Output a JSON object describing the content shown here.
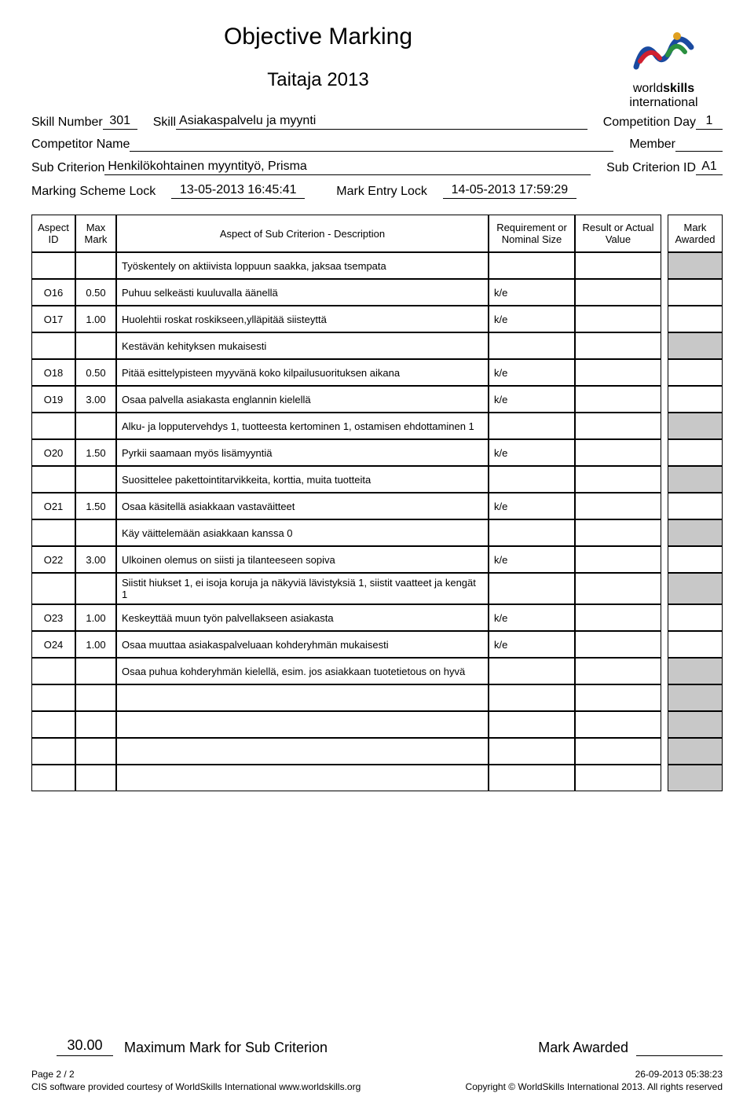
{
  "titles": {
    "main": "Objective Marking",
    "sub": "Taitaja 2013"
  },
  "logo": {
    "line1": "world",
    "line1b": "skills",
    "line2": "international"
  },
  "meta": {
    "skill_number_label": "Skill Number",
    "skill_number": "301",
    "skill_label": "Skill",
    "skill": "Asiakaspalvelu ja myynti",
    "comp_day_label": "Competition Day",
    "comp_day": "1",
    "competitor_label": "Competitor Name",
    "member_label": "Member",
    "sub_crit_label": "Sub Criterion",
    "sub_crit": "Henkilökohtainen myyntityö, Prisma",
    "sub_crit_id_label": "Sub Criterion ID",
    "sub_crit_id": "A1",
    "lock1_label": "Marking Scheme Lock",
    "lock1": "13-05-2013  16:45:41",
    "lock2_label": "Mark Entry Lock",
    "lock2": "14-05-2013  17:59:29"
  },
  "headers": {
    "id": "Aspect ID",
    "max": "Max Mark",
    "desc": "Aspect of Sub Criterion - Description",
    "req": "Requirement or Nominal Size",
    "res": "Result or Actual Value",
    "awd": "Mark Awarded"
  },
  "rows": [
    {
      "type": "note",
      "desc": "Työskentely on aktiivista loppuun saakka, jaksaa tsempata"
    },
    {
      "type": "item",
      "id": "O16",
      "max": "0.50",
      "desc": "Puhuu selkeästi kuuluvalla äänellä",
      "req": "k/e"
    },
    {
      "type": "item",
      "id": "O17",
      "max": "1.00",
      "desc": "Huolehtii roskat roskikseen,ylläpitää siisteyttä",
      "req": "k/e"
    },
    {
      "type": "note",
      "desc": "Kestävän kehityksen mukaisesti"
    },
    {
      "type": "item",
      "id": "O18",
      "max": "0.50",
      "desc": "Pitää esittelypisteen myyvänä koko kilpailusuorituksen aikana",
      "req": "k/e"
    },
    {
      "type": "item",
      "id": "O19",
      "max": "3.00",
      "desc": "Osaa palvella asiakasta englannin kielellä",
      "req": "k/e"
    },
    {
      "type": "note",
      "desc": "Alku- ja lopputervehdys 1, tuotteesta kertominen 1, ostamisen ehdottaminen 1"
    },
    {
      "type": "item",
      "id": "O20",
      "max": "1.50",
      "desc": "Pyrkii saamaan myös lisämyyntiä",
      "req": "k/e"
    },
    {
      "type": "note",
      "desc": "Suosittelee pakettointitarvikkeita, korttia, muita tuotteita"
    },
    {
      "type": "item",
      "id": "O21",
      "max": "1.50",
      "desc": "Osaa käsitellä asiakkaan vastaväitteet",
      "req": "k/e"
    },
    {
      "type": "note",
      "desc": "Käy väittelemään asiakkaan kanssa 0"
    },
    {
      "type": "item",
      "id": "O22",
      "max": "3.00",
      "desc": "Ulkoinen olemus on siisti ja tilanteeseen sopiva",
      "req": "k/e"
    },
    {
      "type": "note",
      "desc": "Siistit hiukset 1, ei isoja koruja ja näkyviä lävistyksiä 1, siistit vaatteet ja kengät 1"
    },
    {
      "type": "item",
      "id": "O23",
      "max": "1.00",
      "desc": "Keskeyttää muun työn palvellakseen asiakasta",
      "req": "k/e"
    },
    {
      "type": "item",
      "id": "O24",
      "max": "1.00",
      "desc": "Osaa muuttaa asiakaspalveluaan kohderyhmän mukaisesti",
      "req": "k/e"
    },
    {
      "type": "note",
      "desc": "Osaa puhua kohderyhmän kielellä, esim. jos asiakkaan tuotetietous on hyvä"
    },
    {
      "type": "empty"
    },
    {
      "type": "empty"
    },
    {
      "type": "empty"
    },
    {
      "type": "empty"
    }
  ],
  "footer": {
    "max_value": "30.00",
    "max_label": "Maximum Mark for Sub Criterion",
    "awarded_label": "Mark Awarded",
    "page": "Page 2 / 2",
    "timestamp": "26-09-2013  05:38:23",
    "credit": "CIS software provided courtesy of WorldSkills International www.worldskills.org",
    "copyright": "Copyright © WorldSkills International 2013. All rights reserved"
  }
}
